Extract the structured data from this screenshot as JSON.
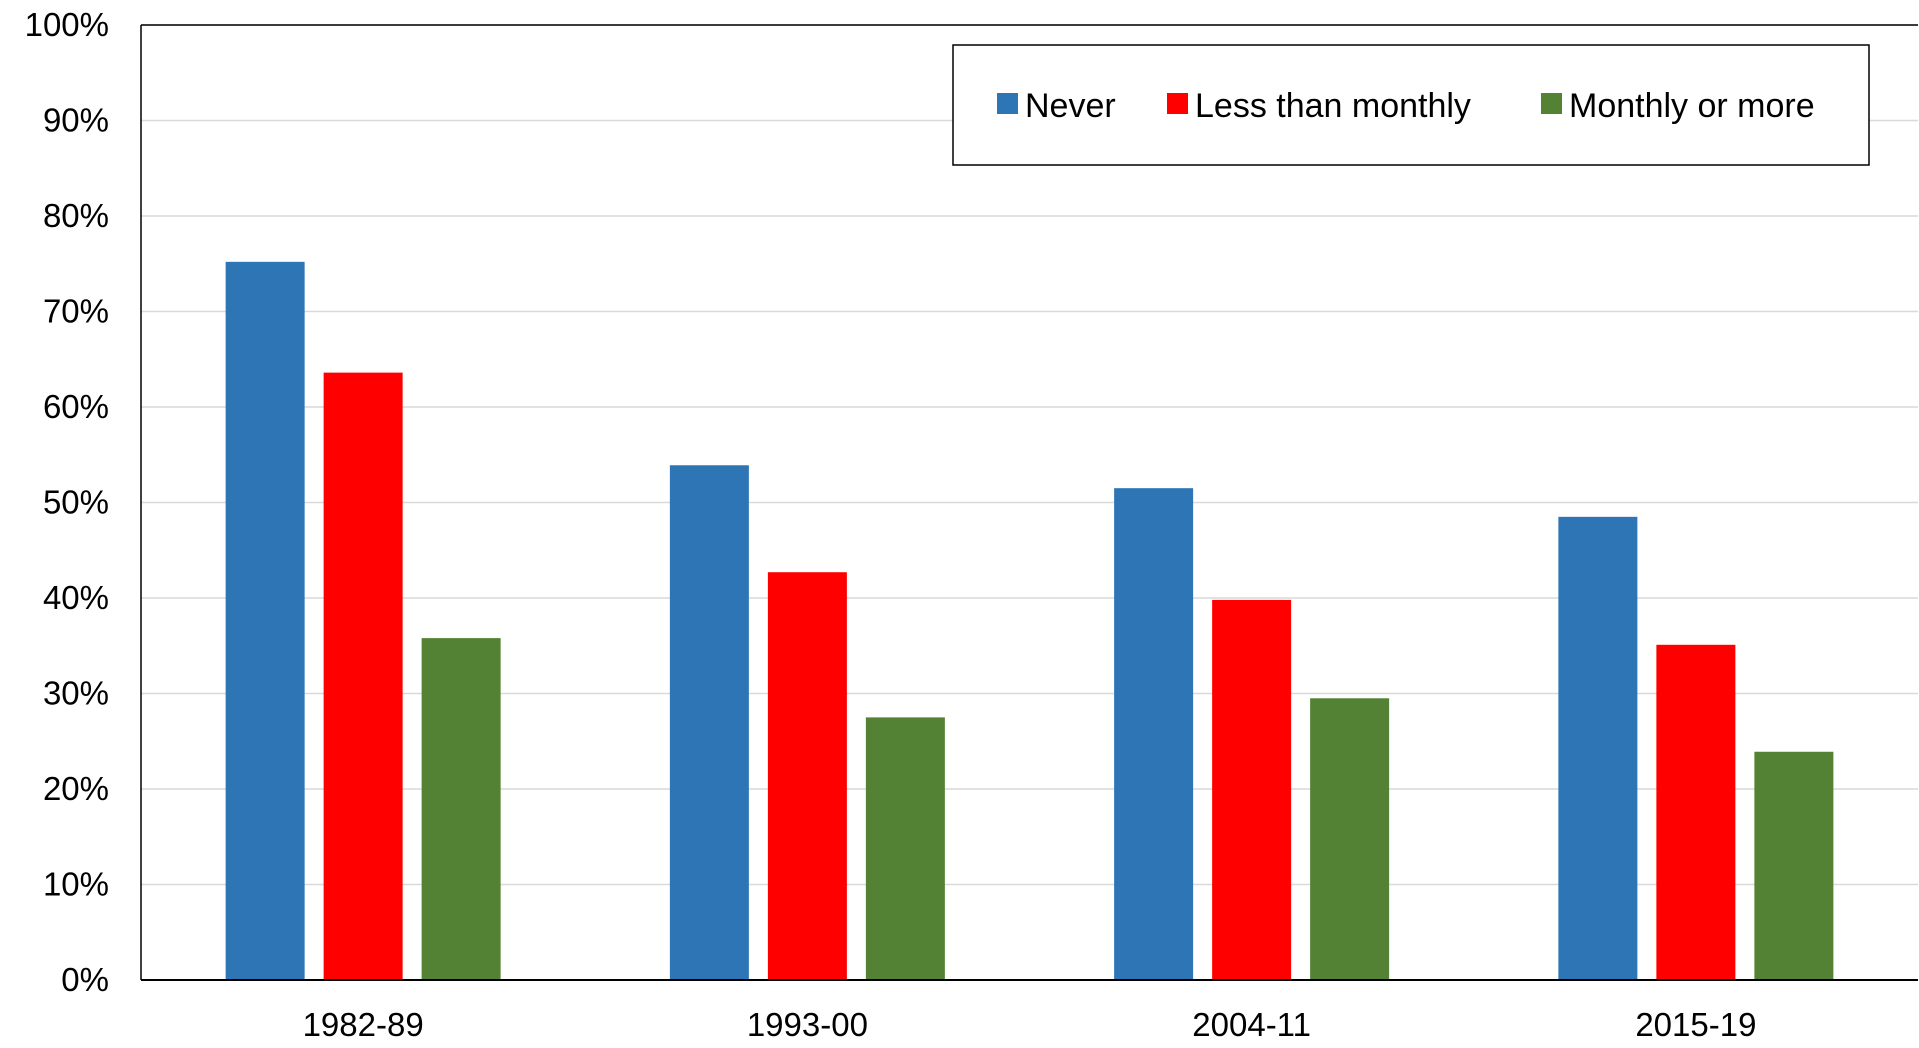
{
  "chart_data": {
    "type": "bar",
    "title": "",
    "xlabel": "",
    "ylabel": "",
    "categories": [
      "1982-89",
      "1993-00",
      "2004-11",
      "2015-19"
    ],
    "series": [
      {
        "name": "Never",
        "color": "#2E75B6",
        "values": [
          75.2,
          53.9,
          51.5,
          48.5
        ]
      },
      {
        "name": "Less than monthly",
        "color": "#FF0000",
        "values": [
          63.6,
          42.7,
          39.8,
          35.1
        ]
      },
      {
        "name": "Monthly or more",
        "color": "#548235",
        "values": [
          35.8,
          27.5,
          29.5,
          23.9
        ]
      }
    ],
    "ylim": [
      0,
      100
    ],
    "y_ticks": [
      0,
      10,
      20,
      30,
      40,
      50,
      60,
      70,
      80,
      90,
      100
    ],
    "y_tick_labels": [
      "0%",
      "10%",
      "20%",
      "30%",
      "40%",
      "50%",
      "60%",
      "70%",
      "80%",
      "90%",
      "100%"
    ],
    "grid": true,
    "grid_color": "#D9D9D9",
    "legend_position": "top-right"
  }
}
